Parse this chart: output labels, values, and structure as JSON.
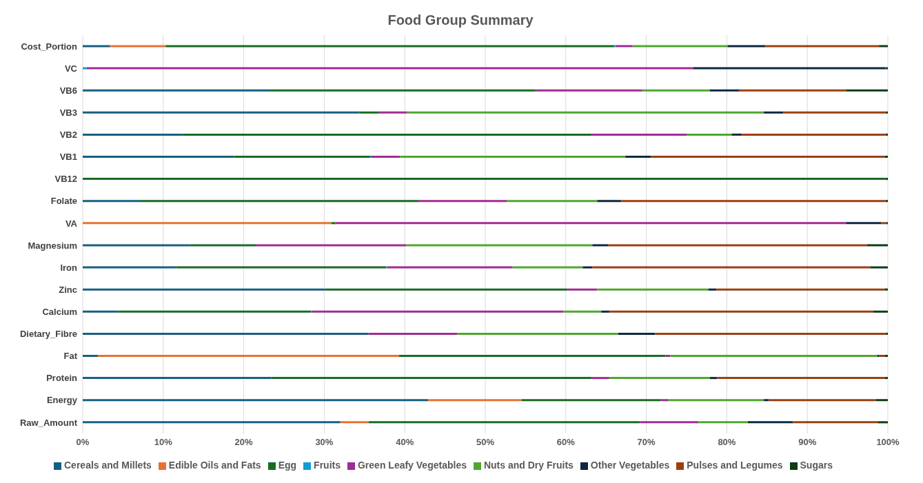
{
  "chart_data": {
    "type": "bar",
    "orientation": "horizontal",
    "stacked": true,
    "title": "Food Group Summary",
    "categories": [
      "Cost_Portion",
      "VC",
      "VB6",
      "VB3",
      "VB2",
      "VB1",
      "VB12",
      "Folate",
      "VA",
      "Magnesium",
      "Iron",
      "Zinc",
      "Calcium",
      "Dietary_Fibre",
      "Fat",
      "Protein",
      "Energy",
      "Raw_Amount"
    ],
    "series": [
      {
        "name": "Cereals and Millets",
        "color": "#156082",
        "values": [
          3.4,
          0,
          23.2,
          34.4,
          12.4,
          18.8,
          0,
          7.1,
          0,
          13.3,
          11.6,
          30.1,
          4.4,
          35.5,
          1.9,
          23.4,
          42.9,
          32.0
        ]
      },
      {
        "name": "Edible Oils and Fats",
        "color": "#e97132",
        "values": [
          6.9,
          0,
          0,
          0,
          0,
          0,
          0,
          0,
          30.9,
          0,
          0,
          0,
          0,
          0,
          37.4,
          0,
          11.6,
          3.5
        ]
      },
      {
        "name": "Egg",
        "color": "#196b24",
        "values": [
          55.7,
          0,
          33.1,
          2.4,
          50.7,
          16.9,
          99.7,
          34.6,
          0.5,
          8.2,
          26.1,
          30.1,
          24.0,
          0,
          33.1,
          39.8,
          17.3,
          33.7
        ]
      },
      {
        "name": "Fruits",
        "color": "#0f9ed5",
        "values": [
          0.2,
          0.5,
          0,
          0,
          0,
          0.1,
          0,
          0,
          0,
          0,
          0.1,
          0,
          0.1,
          0,
          0,
          0,
          0,
          0
        ]
      },
      {
        "name": "Green Leafy Vegetables",
        "color": "#a02b93",
        "values": [
          2.1,
          75.3,
          13.2,
          3.5,
          11.9,
          3.6,
          0,
          11.0,
          63.4,
          18.7,
          15.6,
          3.7,
          31.2,
          11.0,
          0.6,
          2.2,
          0.9,
          7.3
        ]
      },
      {
        "name": "Nuts and Dry Fruits",
        "color": "#4ea72e",
        "values": [
          11.8,
          0,
          8.4,
          44.3,
          5.6,
          28.0,
          0,
          11.2,
          0,
          23.1,
          8.7,
          13.8,
          4.7,
          20.0,
          25.7,
          12.5,
          11.9,
          6.1
        ]
      },
      {
        "name": "Other Vegetables",
        "color": "#0e2841",
        "values": [
          4.7,
          23.9,
          3.6,
          2.4,
          1.3,
          3.2,
          0,
          3.0,
          4.4,
          2.0,
          1.2,
          1.0,
          1.0,
          4.6,
          0.2,
          0.9,
          0.6,
          5.6
        ]
      },
      {
        "name": "Pulses and Legumes",
        "color": "#9c3f0f",
        "values": [
          14.1,
          0,
          13.3,
          12.7,
          17.8,
          29.0,
          0,
          32.8,
          0.6,
          32.1,
          34.5,
          20.9,
          32.8,
          28.6,
          0.7,
          20.8,
          13.3,
          10.6
        ]
      },
      {
        "name": "Sugars",
        "color": "#0b3d17",
        "values": [
          1.1,
          0.3,
          5.2,
          0.3,
          0.3,
          0.4,
          0.3,
          0.3,
          0.2,
          2.6,
          2.2,
          0.4,
          1.8,
          0.3,
          0.4,
          0.4,
          1.5,
          1.2
        ]
      }
    ],
    "xlim": [
      0,
      100
    ],
    "xticks": [
      {
        "value": 0,
        "label": "0%"
      },
      {
        "value": 10,
        "label": "10%"
      },
      {
        "value": 20,
        "label": "20%"
      },
      {
        "value": 30,
        "label": "30%"
      },
      {
        "value": 40,
        "label": "40%"
      },
      {
        "value": 50,
        "label": "50%"
      },
      {
        "value": 60,
        "label": "60%"
      },
      {
        "value": 70,
        "label": "70%"
      },
      {
        "value": 80,
        "label": "80%"
      },
      {
        "value": 90,
        "label": "90%"
      },
      {
        "value": 100,
        "label": "100%"
      }
    ],
    "grid": "x",
    "legend": "bottom"
  }
}
